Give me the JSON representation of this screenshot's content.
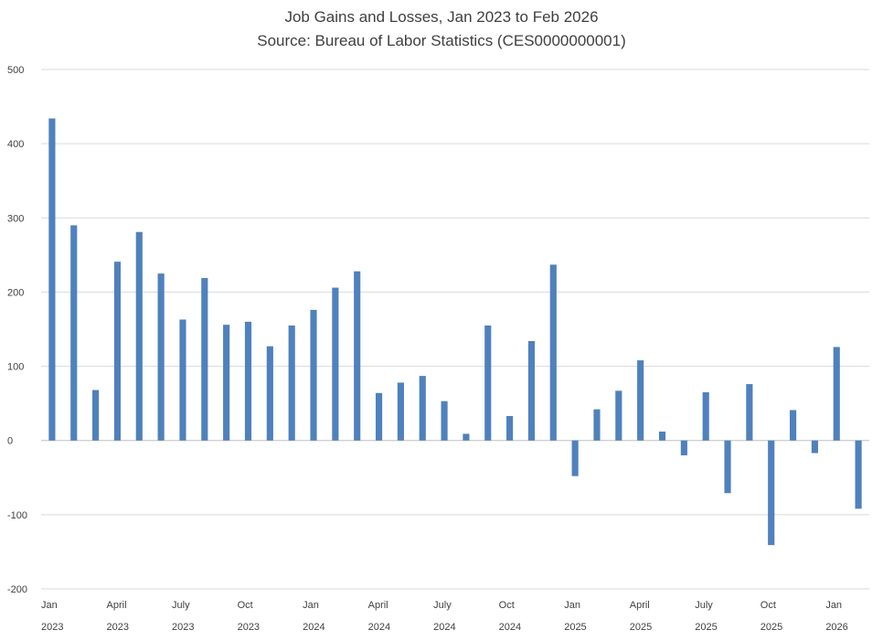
{
  "chart_data": {
    "type": "bar",
    "title": "Job Gains and Losses, Jan 2023 to Feb 2026",
    "subtitle": "Source: Bureau of Labor Statistics (CES0000000001)",
    "xlabel": "",
    "ylabel": "",
    "ylim": [
      -200,
      500
    ],
    "yticks": [
      500,
      400,
      300,
      200,
      100,
      0,
      -100,
      -200
    ],
    "grid": true,
    "bar_color": "#4F81BD",
    "categories": [
      "Jan 2023",
      "Feb 2023",
      "Mar 2023",
      "Apr 2023",
      "May 2023",
      "Jun 2023",
      "Jul 2023",
      "Aug 2023",
      "Sep 2023",
      "Oct 2023",
      "Nov 2023",
      "Dec 2023",
      "Jan 2024",
      "Feb 2024",
      "Mar 2024",
      "Apr 2024",
      "May 2024",
      "Jun 2024",
      "Jul 2024",
      "Aug 2024",
      "Sep 2024",
      "Oct 2024",
      "Nov 2024",
      "Dec 2024",
      "Jan 2025",
      "Feb 2025",
      "Mar 2025",
      "Apr 2025",
      "May 2025",
      "Jun 2025",
      "Jul 2025",
      "Aug 2025",
      "Sep 2025",
      "Oct 2025",
      "Nov 2025",
      "Dec 2025",
      "Jan 2026",
      "Feb 2026"
    ],
    "values": [
      434,
      290,
      68,
      241,
      281,
      225,
      163,
      219,
      156,
      160,
      127,
      155,
      176,
      206,
      228,
      64,
      78,
      87,
      53,
      9,
      155,
      33,
      134,
      237,
      -48,
      42,
      67,
      108,
      12,
      -20,
      65,
      -71,
      76,
      -141,
      41,
      -17,
      126,
      -92
    ],
    "x_tick_labels": [
      {
        "index": 0,
        "month": "Jan",
        "year": "2023"
      },
      {
        "index": 3,
        "month": "April",
        "year": "2023"
      },
      {
        "index": 6,
        "month": "July",
        "year": "2023"
      },
      {
        "index": 9,
        "month": "Oct",
        "year": "2023"
      },
      {
        "index": 12,
        "month": "Jan",
        "year": "2024"
      },
      {
        "index": 15,
        "month": "April",
        "year": "2024"
      },
      {
        "index": 18,
        "month": "July",
        "year": "2024"
      },
      {
        "index": 21,
        "month": "Oct",
        "year": "2024"
      },
      {
        "index": 24,
        "month": "Jan",
        "year": "2025"
      },
      {
        "index": 27,
        "month": "April",
        "year": "2025"
      },
      {
        "index": 30,
        "month": "July",
        "year": "2025"
      },
      {
        "index": 33,
        "month": "Oct",
        "year": "2025"
      },
      {
        "index": 36,
        "month": "Jan",
        "year": "2026"
      }
    ]
  }
}
